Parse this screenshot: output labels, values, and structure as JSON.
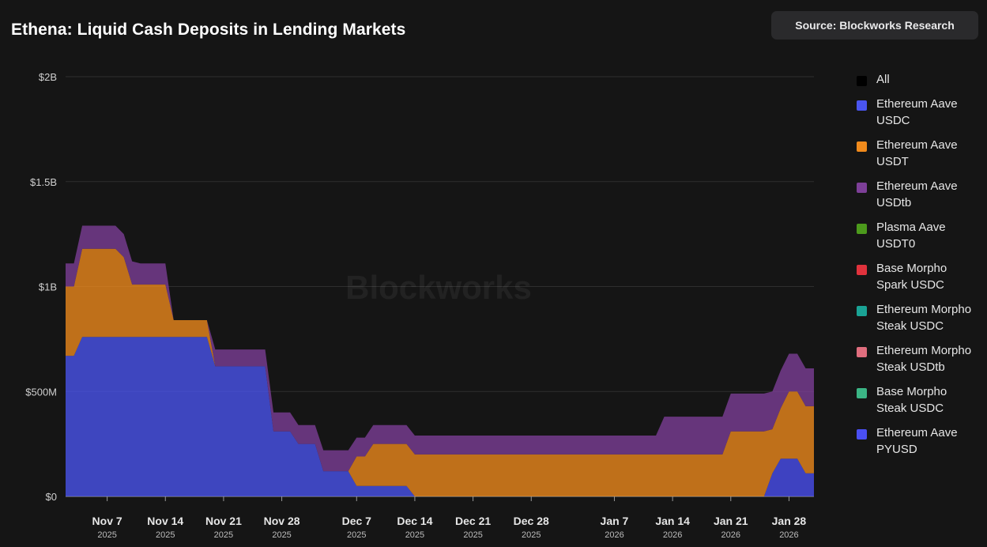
{
  "header": {
    "title": "Ethena: Liquid Cash Deposits in Lending Markets",
    "source_label": "Source: Blockworks Research",
    "watermark": "Blockworks"
  },
  "legend": [
    {
      "label": "All",
      "color": "#000000"
    },
    {
      "label": "Ethereum Aave USDC",
      "color": "#4a55f0"
    },
    {
      "label": "Ethereum Aave USDT",
      "color": "#f08a1c"
    },
    {
      "label": "Ethereum Aave USDtb",
      "color": "#7d3f98"
    },
    {
      "label": "Plasma Aave USDT0",
      "color": "#4c9a1c"
    },
    {
      "label": "Base Morpho Spark USDC",
      "color": "#e0323c"
    },
    {
      "label": "Ethereum Morpho Steak USDC",
      "color": "#1aa395"
    },
    {
      "label": "Ethereum Morpho Steak USDtb",
      "color": "#e06e7e"
    },
    {
      "label": "Base Morpho Steak USDC",
      "color": "#3bb585"
    },
    {
      "label": "Ethereum Aave PYUSD",
      "color": "#4a4ff2"
    }
  ],
  "chart_data": {
    "type": "area",
    "stacked": true,
    "title": "Ethena: Liquid Cash Deposits in Lending Markets",
    "xlabel": "",
    "ylabel": "",
    "y_unit": "USD",
    "ylim": [
      0,
      2000000000
    ],
    "y_ticks": [
      {
        "value": 0,
        "label": "$0"
      },
      {
        "value": 500000000,
        "label": "$500M"
      },
      {
        "value": 1000000000,
        "label": "$1B"
      },
      {
        "value": 1500000000,
        "label": "$1.5B"
      },
      {
        "value": 2000000000,
        "label": "$2B"
      }
    ],
    "x_start": "2025-11-02",
    "x_end": "2026-02-01",
    "x_ticks": [
      {
        "day": 5,
        "label": "Nov 7",
        "year": "2025"
      },
      {
        "day": 12,
        "label": "Nov 14",
        "year": "2025"
      },
      {
        "day": 19,
        "label": "Nov 21",
        "year": "2025"
      },
      {
        "day": 26,
        "label": "Nov 28",
        "year": "2025"
      },
      {
        "day": 35,
        "label": "Dec 7",
        "year": "2025"
      },
      {
        "day": 42,
        "label": "Dec 14",
        "year": "2025"
      },
      {
        "day": 49,
        "label": "Dec 21",
        "year": "2025"
      },
      {
        "day": 56,
        "label": "Dec 28",
        "year": "2025"
      },
      {
        "day": 66,
        "label": "Jan 7",
        "year": "2026"
      },
      {
        "day": 73,
        "label": "Jan 14",
        "year": "2026"
      },
      {
        "day": 80,
        "label": "Jan 21",
        "year": "2026"
      },
      {
        "day": 87,
        "label": "Jan 28",
        "year": "2026"
      }
    ],
    "x_days": [
      0,
      1,
      2,
      3,
      4,
      5,
      6,
      7,
      8,
      9,
      10,
      11,
      12,
      13,
      14,
      15,
      16,
      17,
      18,
      19,
      20,
      21,
      22,
      23,
      24,
      25,
      26,
      27,
      28,
      29,
      30,
      31,
      32,
      33,
      34,
      35,
      36,
      37,
      38,
      39,
      40,
      41,
      42,
      43,
      44,
      45,
      46,
      47,
      48,
      49,
      50,
      51,
      52,
      53,
      54,
      55,
      56,
      57,
      58,
      59,
      60,
      61,
      62,
      63,
      64,
      65,
      66,
      67,
      68,
      69,
      70,
      71,
      72,
      73,
      74,
      75,
      76,
      77,
      78,
      79,
      80,
      81,
      82,
      83,
      84,
      85,
      86,
      87,
      88,
      89,
      90
    ],
    "series_unit": "millions USD",
    "series": [
      {
        "name": "Ethereum Aave PYUSD",
        "color": "#4a4ff2",
        "values": [
          0,
          0,
          0,
          0,
          0,
          0,
          0,
          0,
          0,
          0,
          0,
          0,
          0,
          0,
          0,
          0,
          0,
          0,
          0,
          0,
          0,
          0,
          0,
          0,
          0,
          0,
          0,
          0,
          0,
          0,
          0,
          0,
          0,
          0,
          0,
          0,
          0,
          0,
          0,
          0,
          0,
          0,
          0,
          0,
          0,
          0,
          0,
          0,
          0,
          0,
          0,
          0,
          0,
          0,
          0,
          0,
          0,
          0,
          0,
          0,
          0,
          0,
          0,
          0,
          0,
          0,
          0,
          0,
          0,
          0,
          0,
          0,
          0,
          0,
          0,
          0,
          0,
          0,
          0,
          0,
          0,
          0,
          0,
          0,
          0,
          110,
          180,
          180,
          180,
          110,
          110
        ]
      },
      {
        "name": "Ethereum Aave USDC",
        "color": "#4a55f0",
        "values": [
          670,
          670,
          760,
          760,
          760,
          760,
          760,
          760,
          760,
          760,
          760,
          760,
          760,
          760,
          760,
          760,
          760,
          760,
          620,
          620,
          620,
          620,
          620,
          620,
          620,
          310,
          310,
          310,
          250,
          250,
          250,
          120,
          120,
          120,
          120,
          50,
          50,
          50,
          50,
          50,
          50,
          50,
          0,
          0,
          0,
          0,
          0,
          0,
          0,
          0,
          0,
          0,
          0,
          0,
          0,
          0,
          0,
          0,
          0,
          0,
          0,
          0,
          0,
          0,
          0,
          0,
          0,
          0,
          0,
          0,
          0,
          0,
          0,
          0,
          0,
          0,
          0,
          0,
          0,
          0,
          0,
          0,
          0,
          0,
          0,
          0,
          0,
          0,
          0,
          0,
          0
        ]
      },
      {
        "name": "Ethereum Aave USDT",
        "color": "#f08a1c",
        "values": [
          330,
          330,
          420,
          420,
          420,
          420,
          420,
          380,
          250,
          250,
          250,
          250,
          250,
          80,
          80,
          80,
          80,
          80,
          0,
          0,
          0,
          0,
          0,
          0,
          0,
          0,
          0,
          0,
          0,
          0,
          0,
          0,
          0,
          0,
          0,
          140,
          140,
          200,
          200,
          200,
          200,
          200,
          200,
          200,
          200,
          200,
          200,
          200,
          200,
          200,
          200,
          200,
          200,
          200,
          200,
          200,
          200,
          200,
          200,
          200,
          200,
          200,
          200,
          200,
          200,
          200,
          200,
          200,
          200,
          200,
          200,
          200,
          200,
          200,
          200,
          200,
          200,
          200,
          200,
          200,
          310,
          310,
          310,
          310,
          310,
          210,
          240,
          320,
          320,
          320,
          320
        ]
      },
      {
        "name": "Ethereum Aave USDtb",
        "color": "#7d3f98",
        "values": [
          110,
          110,
          110,
          110,
          110,
          110,
          110,
          110,
          110,
          100,
          100,
          100,
          100,
          0,
          0,
          0,
          0,
          0,
          80,
          80,
          80,
          80,
          80,
          80,
          80,
          90,
          90,
          90,
          90,
          90,
          90,
          100,
          100,
          100,
          100,
          90,
          90,
          90,
          90,
          90,
          90,
          90,
          90,
          90,
          90,
          90,
          90,
          90,
          90,
          90,
          90,
          90,
          90,
          90,
          90,
          90,
          90,
          90,
          90,
          90,
          90,
          90,
          90,
          90,
          90,
          90,
          90,
          90,
          90,
          90,
          90,
          90,
          180,
          180,
          180,
          180,
          180,
          180,
          180,
          180,
          180,
          180,
          180,
          180,
          180,
          180,
          180,
          180,
          180,
          180,
          180
        ]
      },
      {
        "name": "Plasma Aave USDT0",
        "color": "#4c9a1c",
        "values": [
          0,
          0,
          0,
          0,
          0,
          0,
          0,
          0,
          0,
          0,
          0,
          0,
          0,
          0,
          0,
          0,
          0,
          0,
          0,
          0,
          0,
          0,
          0,
          0,
          0,
          0,
          0,
          0,
          0,
          0,
          0,
          0,
          0,
          0,
          0,
          0,
          0,
          0,
          0,
          0,
          0,
          0,
          0,
          0,
          0,
          0,
          0,
          0,
          0,
          0,
          0,
          0,
          0,
          0,
          0,
          0,
          0,
          0,
          0,
          0,
          0,
          0,
          0,
          0,
          0,
          0,
          0,
          0,
          0,
          0,
          0,
          0,
          0,
          0,
          0,
          0,
          0,
          0,
          0,
          0,
          0,
          0,
          0,
          0,
          0,
          0,
          0,
          0,
          0,
          0,
          0
        ]
      },
      {
        "name": "Base Morpho Spark USDC",
        "color": "#e0323c",
        "values": [
          0,
          0,
          0,
          0,
          0,
          0,
          0,
          0,
          0,
          0,
          0,
          0,
          0,
          0,
          0,
          0,
          0,
          0,
          0,
          0,
          0,
          0,
          0,
          0,
          0,
          0,
          0,
          0,
          0,
          0,
          0,
          0,
          0,
          0,
          0,
          0,
          0,
          0,
          0,
          0,
          0,
          0,
          0,
          0,
          0,
          0,
          0,
          0,
          0,
          0,
          0,
          0,
          0,
          0,
          0,
          0,
          0,
          0,
          0,
          0,
          0,
          0,
          0,
          0,
          0,
          0,
          0,
          0,
          0,
          0,
          0,
          0,
          0,
          0,
          0,
          0,
          0,
          0,
          0,
          0,
          0,
          0,
          0,
          0,
          0,
          0,
          0,
          0,
          0,
          0,
          0
        ]
      },
      {
        "name": "Ethereum Morpho Steak USDC",
        "color": "#1aa395",
        "values": [
          0,
          0,
          0,
          0,
          0,
          0,
          0,
          0,
          0,
          0,
          0,
          0,
          0,
          0,
          0,
          0,
          0,
          0,
          0,
          0,
          0,
          0,
          0,
          0,
          0,
          0,
          0,
          0,
          0,
          0,
          0,
          0,
          0,
          0,
          0,
          0,
          0,
          0,
          0,
          0,
          0,
          0,
          0,
          0,
          0,
          0,
          0,
          0,
          0,
          0,
          0,
          0,
          0,
          0,
          0,
          0,
          0,
          0,
          0,
          0,
          0,
          0,
          0,
          0,
          0,
          0,
          0,
          0,
          0,
          0,
          0,
          0,
          0,
          0,
          0,
          0,
          0,
          0,
          0,
          0,
          0,
          0,
          0,
          0,
          0,
          0,
          0,
          0,
          0,
          0,
          0
        ]
      },
      {
        "name": "Ethereum Morpho Steak USDtb",
        "color": "#e06e7e",
        "values": [
          0,
          0,
          0,
          0,
          0,
          0,
          0,
          0,
          0,
          0,
          0,
          0,
          0,
          0,
          0,
          0,
          0,
          0,
          0,
          0,
          0,
          0,
          0,
          0,
          0,
          0,
          0,
          0,
          0,
          0,
          0,
          0,
          0,
          0,
          0,
          0,
          0,
          0,
          0,
          0,
          0,
          0,
          0,
          0,
          0,
          0,
          0,
          0,
          0,
          0,
          0,
          0,
          0,
          0,
          0,
          0,
          0,
          0,
          0,
          0,
          0,
          0,
          0,
          0,
          0,
          0,
          0,
          0,
          0,
          0,
          0,
          0,
          0,
          0,
          0,
          0,
          0,
          0,
          0,
          0,
          0,
          0,
          0,
          0,
          0,
          0,
          0,
          0,
          0,
          0,
          0
        ]
      },
      {
        "name": "Base Morpho Steak USDC",
        "color": "#3bb585",
        "values": [
          0,
          0,
          0,
          0,
          0,
          0,
          0,
          0,
          0,
          0,
          0,
          0,
          0,
          0,
          0,
          0,
          0,
          0,
          0,
          0,
          0,
          0,
          0,
          0,
          0,
          0,
          0,
          0,
          0,
          0,
          0,
          0,
          0,
          0,
          0,
          0,
          0,
          0,
          0,
          0,
          0,
          0,
          0,
          0,
          0,
          0,
          0,
          0,
          0,
          0,
          0,
          0,
          0,
          0,
          0,
          0,
          0,
          0,
          0,
          0,
          0,
          0,
          0,
          0,
          0,
          0,
          0,
          0,
          0,
          0,
          0,
          0,
          0,
          0,
          0,
          0,
          0,
          0,
          0,
          0,
          0,
          0,
          0,
          0,
          0,
          0,
          0,
          0,
          0,
          0,
          0
        ]
      }
    ]
  }
}
